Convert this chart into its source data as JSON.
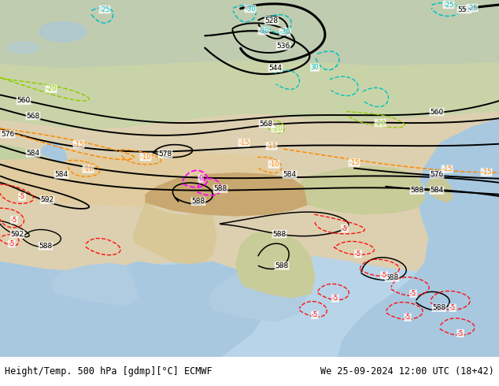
{
  "title_left": "Height/Temp. 500 hPa [gdmp][°C] ECMWF",
  "title_right": "We 25-09-2024 12:00 UTC (18+42)",
  "fig_width": 6.34,
  "fig_height": 4.9,
  "dpi": 100
}
